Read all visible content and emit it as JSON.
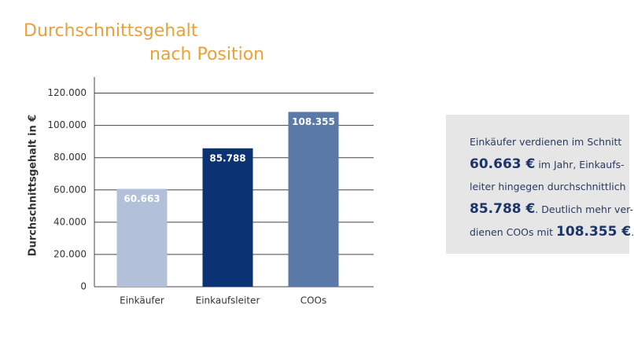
{
  "chart_data": {
    "type": "bar",
    "title_lines": [
      "Durchschnittsgehalt",
      "nach Position"
    ],
    "y_label": "Durchschnittsgehalt  in €",
    "categories": [
      "Einkäufer",
      "Einkaufsleiter",
      "COOs"
    ],
    "values": [
      60663,
      85788,
      108355
    ],
    "value_labels": [
      "60.663",
      "85.788",
      "108.355"
    ],
    "colors": [
      "#b2c1d9",
      "#0b3373",
      "#5b79a7"
    ],
    "ylim": [
      0,
      130000
    ],
    "yticks": [
      0,
      {
        "value": 20000,
        "label": "20.000"
      },
      {
        "value": 40000,
        "label": "40.000"
      },
      {
        "value": 60000,
        "label": "60.000"
      },
      {
        "value": 80000,
        "label": "80.000"
      },
      {
        "value": 100000,
        "label": "100.000"
      },
      {
        "value": 120000,
        "label": "120.000"
      }
    ],
    "grid": true
  },
  "callout": {
    "lines": [
      [
        {
          "text": "Einkäufer verdienen im Schnitt",
          "bold": false
        }
      ],
      [
        {
          "text": "60.663 €",
          "bold": true
        },
        {
          "text": " im Jahr, Einkaufs-",
          "bold": false
        }
      ],
      [
        {
          "text": "leiter hingegen durchschnittlich",
          "bold": false
        }
      ],
      [
        {
          "text": "85.788 €",
          "bold": true
        },
        {
          "text": ". Deutlich mehr ver-",
          "bold": false
        }
      ],
      [
        {
          "text": "dienen COOs mit ",
          "bold": false
        },
        {
          "text": "108.355 €",
          "bold": true
        },
        {
          "text": ".",
          "bold": false
        }
      ]
    ]
  }
}
